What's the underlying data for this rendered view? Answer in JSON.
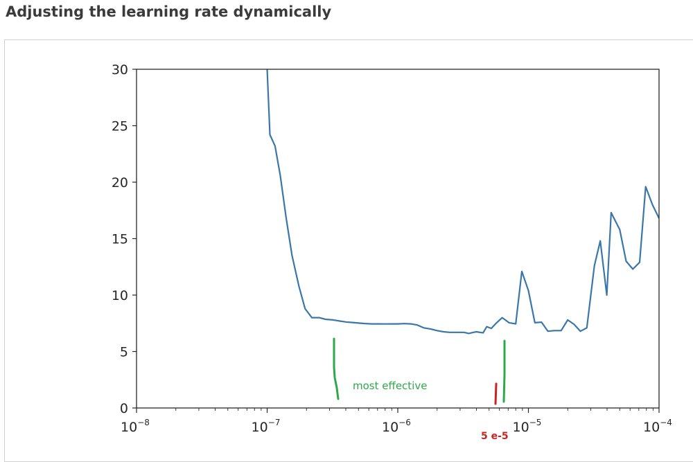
{
  "page": {
    "heading": "Adjusting the learning rate dynamically"
  },
  "colors": {
    "line": "#3a76a8",
    "axes": "#262626",
    "annotation_green": "#2ea84a",
    "annotation_red": "#cc2222"
  },
  "chart_data": {
    "type": "line",
    "title": "",
    "xlabel": "",
    "ylabel": "",
    "xscale": "log",
    "xlim": [
      1e-08,
      0.0001
    ],
    "ylim": [
      0,
      30
    ],
    "grid": false,
    "legend": "none",
    "y_ticks": [
      0,
      5,
      10,
      15,
      20,
      25,
      30
    ],
    "y_tick_labels": [
      "0",
      "5",
      "10",
      "15",
      "20",
      "25",
      "30"
    ],
    "x_ticks": [
      1e-08,
      1e-07,
      1e-06,
      1e-05,
      0.0001
    ],
    "x_tick_labels": [
      {
        "base": "10",
        "exp": "−8"
      },
      {
        "base": "10",
        "exp": "−7"
      },
      {
        "base": "10",
        "exp": "−6"
      },
      {
        "base": "10",
        "exp": "−5"
      },
      {
        "base": "10",
        "exp": "−4"
      }
    ],
    "series": [
      {
        "x": [
          1e-07,
          1.05e-07,
          1.15e-07,
          1.26e-07,
          1.4e-07,
          1.55e-07,
          1.75e-07,
          1.95e-07,
          2.2e-07,
          2.5e-07,
          2.8e-07,
          3.2e-07,
          3.6e-07,
          4e-07,
          4.5e-07,
          5e-07,
          5.6e-07,
          6.3e-07,
          7.1e-07,
          8e-07,
          8.9e-07,
          1e-06,
          1.12e-06,
          1.26e-06,
          1.41e-06,
          1.58e-06,
          1.78e-06,
          2e-06,
          2.24e-06,
          2.5e-06,
          2.8e-06,
          3.2e-06,
          3.5e-06,
          3.8e-06,
          4e-06,
          4.5e-06,
          4.8e-06,
          5.2e-06,
          5.6e-06,
          6.3e-06,
          7.1e-06,
          8e-06,
          8.9e-06,
          1e-05,
          1.12e-05,
          1.26e-05,
          1.41e-05,
          1.58e-05,
          1.78e-05,
          2e-05,
          2.24e-05,
          2.5e-05,
          2.8e-05,
          3.2e-05,
          3.55e-05,
          3.98e-05,
          4.3e-05,
          5e-05,
          5.6e-05,
          6.3e-05,
          7.1e-05,
          7.9e-05,
          8.9e-05,
          0.0001
        ],
        "y": [
          30.0,
          24.2,
          23.2,
          20.6,
          16.8,
          13.5,
          10.8,
          8.8,
          8.0,
          8.0,
          7.85,
          7.8,
          7.7,
          7.62,
          7.57,
          7.52,
          7.48,
          7.45,
          7.45,
          7.44,
          7.45,
          7.45,
          7.47,
          7.45,
          7.35,
          7.1,
          7.0,
          6.85,
          6.75,
          6.7,
          6.7,
          6.7,
          6.6,
          6.7,
          6.75,
          6.65,
          7.2,
          7.05,
          7.45,
          8.0,
          7.55,
          7.45,
          12.1,
          10.4,
          7.55,
          7.6,
          6.8,
          6.85,
          6.85,
          7.8,
          7.4,
          6.8,
          7.1,
          12.6,
          14.8,
          10.0,
          17.3,
          15.8,
          13.0,
          12.3,
          12.9,
          19.6,
          18.0,
          16.8
        ]
      }
    ],
    "annotations": [
      {
        "text": "most effective"
      },
      {
        "text": "5 e-5"
      }
    ]
  }
}
